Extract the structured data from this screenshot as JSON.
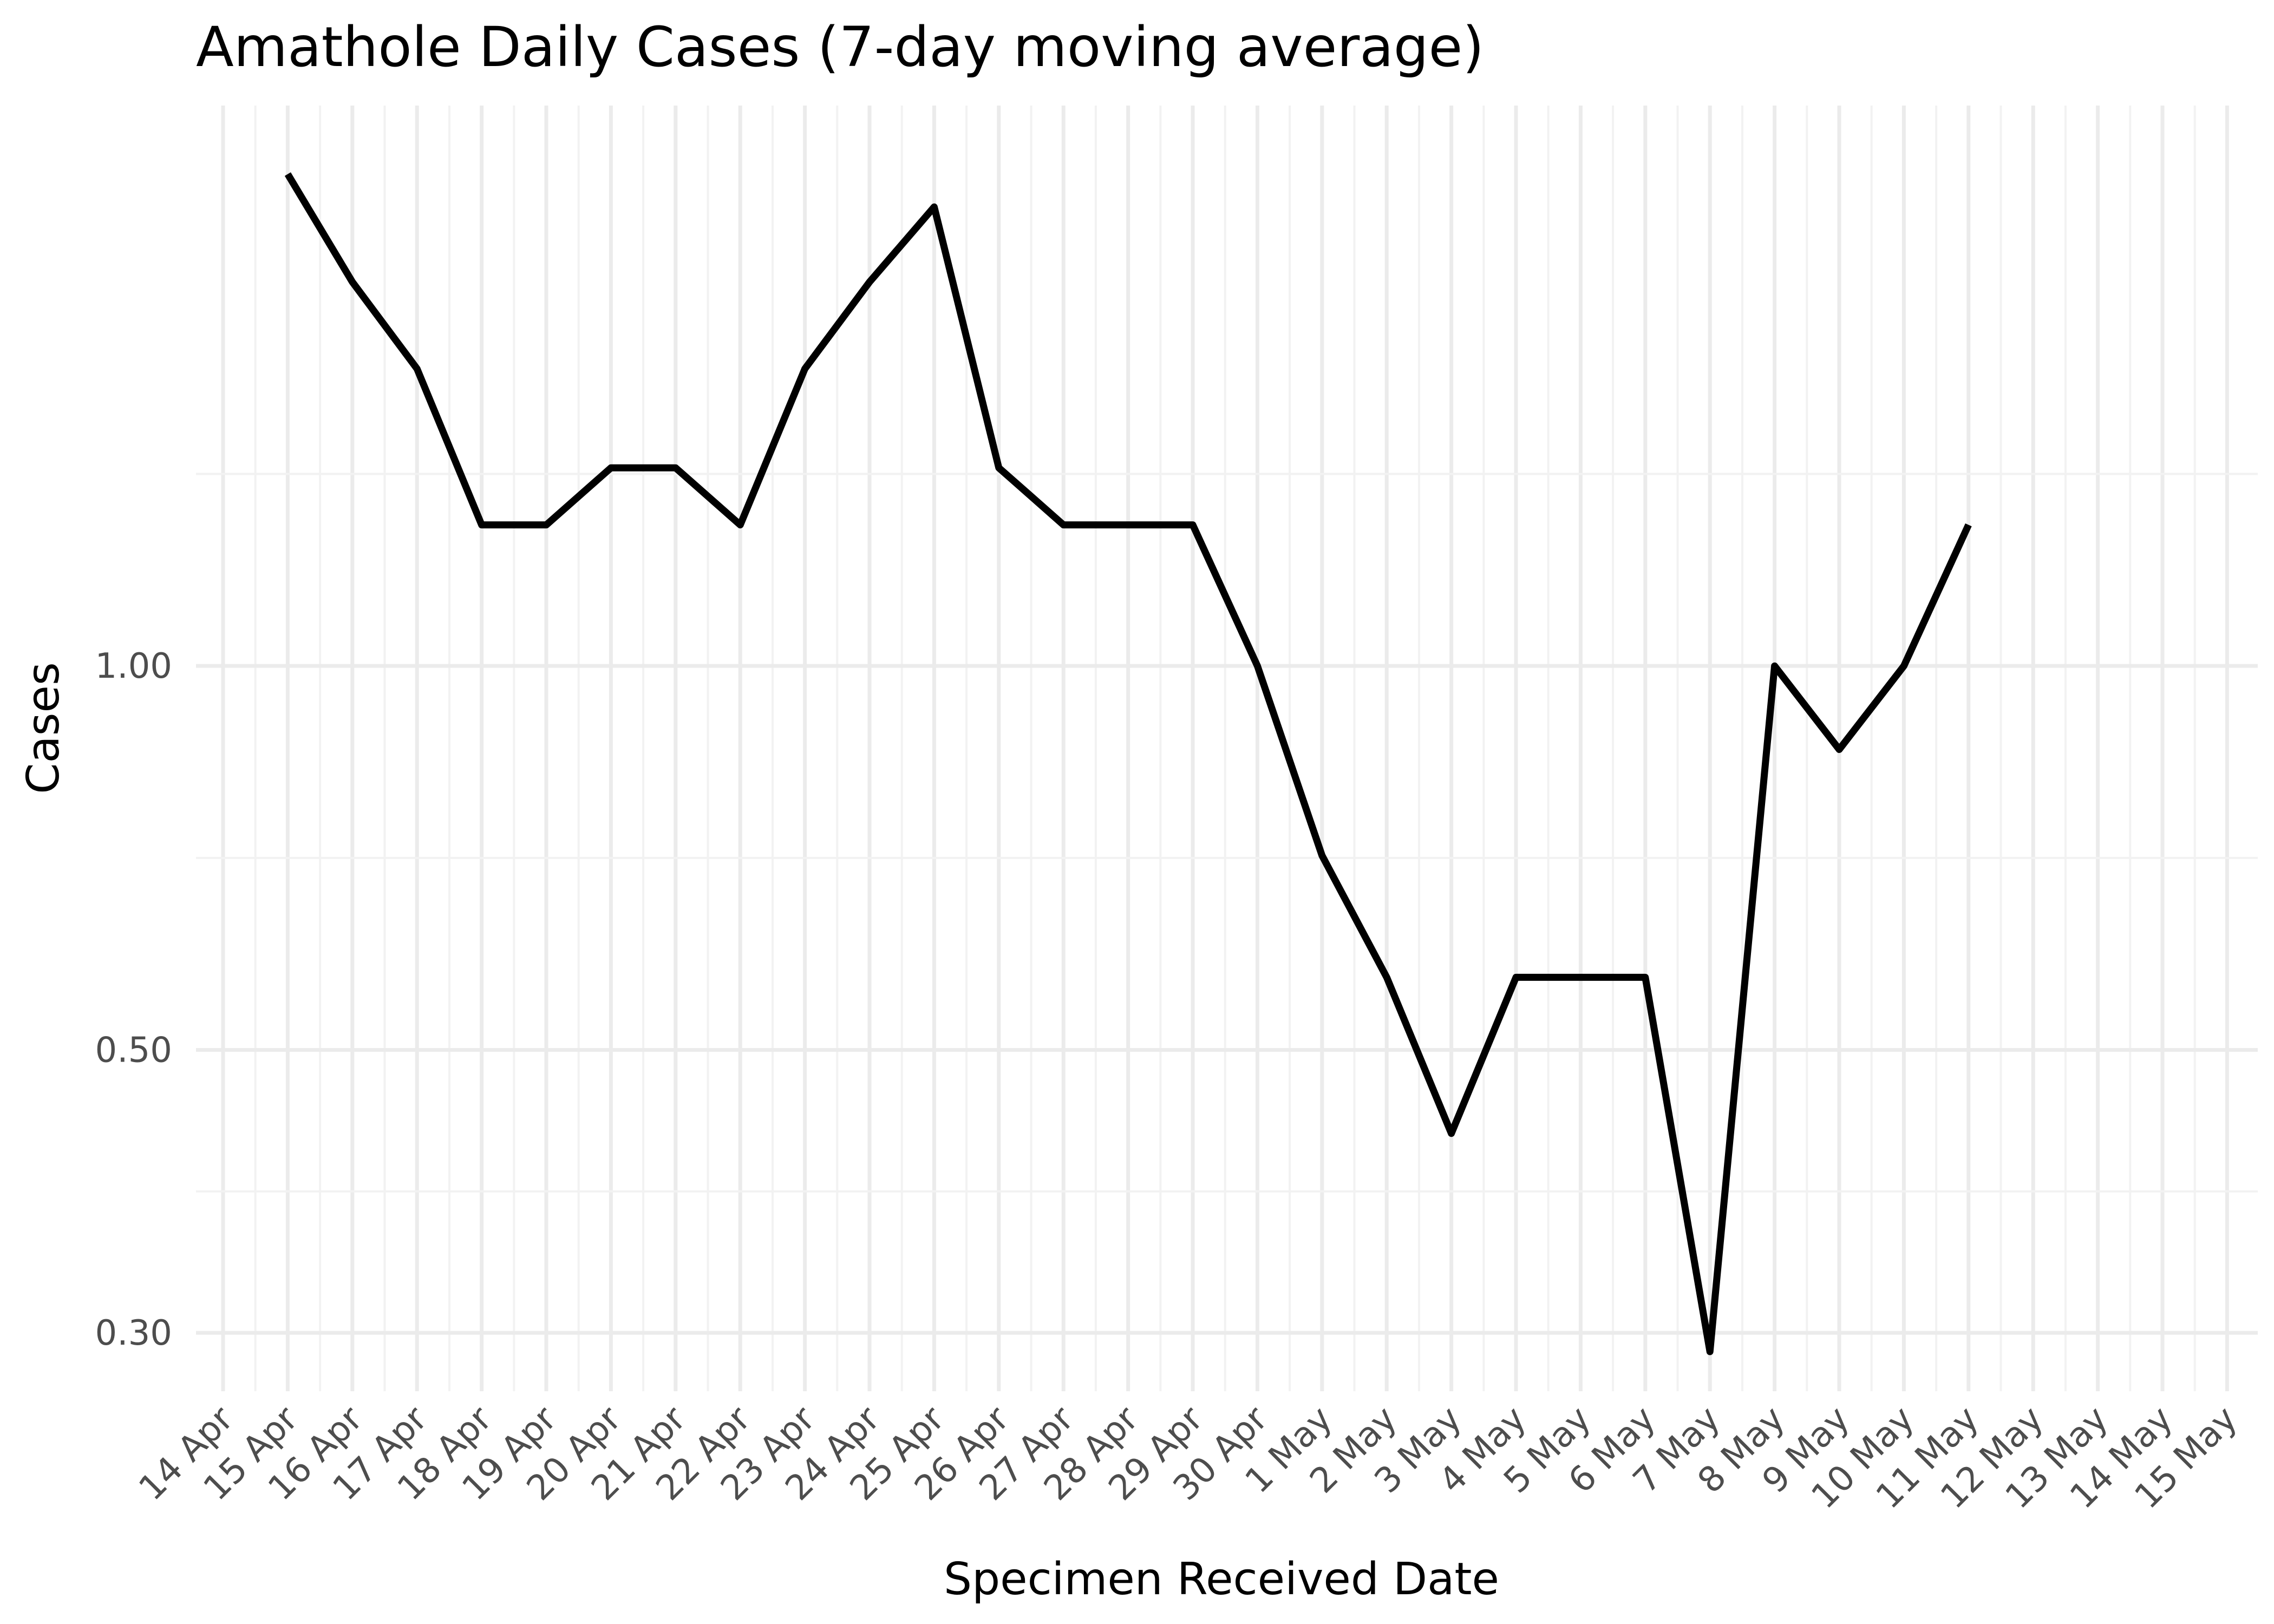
{
  "chart_data": {
    "type": "line",
    "title": "Amathole Daily Cases (7-day moving average)",
    "xlabel": "Specimen Received Date",
    "ylabel": "Cases",
    "y_scale": "log",
    "ylim": [
      0.27,
      2.75
    ],
    "y_ticks": [
      0.3,
      0.5,
      1.0
    ],
    "y_tick_labels": [
      "0.30",
      "0.50",
      "1.00"
    ],
    "x_categories": [
      "14 Apr",
      "15 Apr",
      "16 Apr",
      "17 Apr",
      "18 Apr",
      "19 Apr",
      "20 Apr",
      "21 Apr",
      "22 Apr",
      "23 Apr",
      "24 Apr",
      "25 Apr",
      "26 Apr",
      "27 Apr",
      "28 Apr",
      "29 Apr",
      "30 Apr",
      "1 May",
      "2 May",
      "3 May",
      "4 May",
      "5 May",
      "6 May",
      "7 May",
      "8 May",
      "9 May",
      "10 May",
      "11 May",
      "12 May",
      "13 May",
      "14 May",
      "15 May"
    ],
    "x_tick_labels": [
      "14 Apr",
      "15 Apr",
      "16 Apr",
      "17 Apr",
      "18 Apr",
      "19 Apr",
      "20 Apr",
      "21 Apr",
      "22 Apr",
      "23 Apr",
      "24 Apr",
      "25 Apr",
      "26 Apr",
      "27 Apr",
      "28 Apr",
      "29 Apr",
      "30 Apr",
      "1 May",
      "2 May",
      "3 May",
      "4 May",
      "5 May",
      "6 May",
      "7 May",
      "8 May",
      "9 May",
      "10 May",
      "11 May",
      "12 May",
      "13 May",
      "14 May",
      "15 May"
    ],
    "grid": true,
    "series": [
      {
        "x": [
          "15 Apr",
          "16 Apr",
          "17 Apr",
          "18 Apr",
          "19 Apr",
          "20 Apr",
          "21 Apr",
          "22 Apr",
          "23 Apr",
          "24 Apr",
          "25 Apr",
          "26 Apr",
          "27 Apr",
          "28 Apr",
          "29 Apr",
          "30 Apr",
          "1 May",
          "2 May",
          "3 May",
          "4 May",
          "5 May",
          "6 May",
          "7 May",
          "8 May",
          "9 May",
          "10 May",
          "11 May"
        ],
        "values": [
          2.43,
          2.0,
          1.71,
          1.29,
          1.29,
          1.43,
          1.43,
          1.29,
          1.71,
          2.0,
          2.29,
          1.43,
          1.29,
          1.29,
          1.29,
          1.0,
          0.71,
          0.57,
          0.43,
          0.57,
          0.57,
          0.57,
          0.29,
          1.0,
          0.86,
          1.0,
          1.29
        ],
        "color": "#000000"
      }
    ]
  }
}
